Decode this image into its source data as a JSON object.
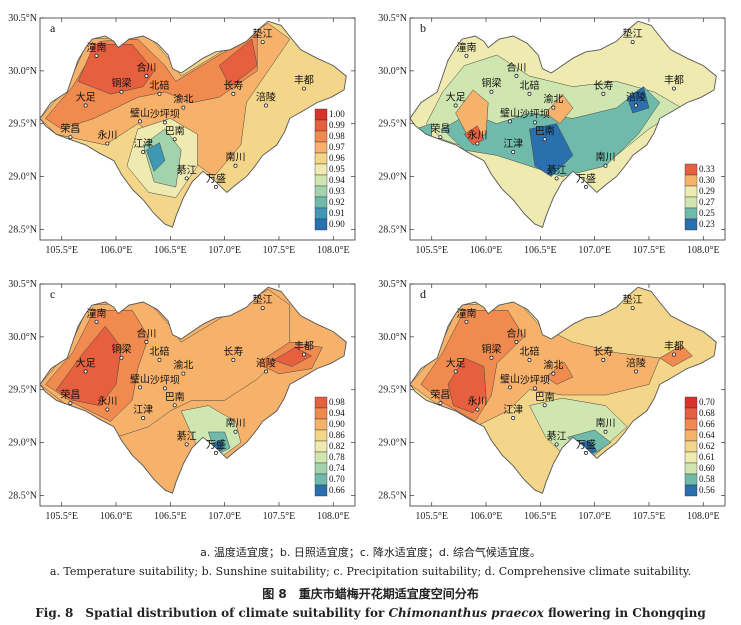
{
  "panels": [
    {
      "letter": "a",
      "legend": [
        "1.00",
        "0.99",
        "0.98",
        "0.97",
        "0.96",
        "0.95",
        "0.94",
        "0.93",
        "0.92",
        "0.91",
        "0.90"
      ],
      "legend_colors": [
        "#d7332a",
        "#e6603f",
        "#f08a4f",
        "#f6b26b",
        "#f4d68a",
        "#eeeab0",
        "#cfe6b0",
        "#a2d3ad",
        "#6fbaaa",
        "#3f98b3",
        "#2a6fae"
      ],
      "map_fill": "#f4d68a"
    },
    {
      "letter": "b",
      "legend": [
        "0.33",
        "0.30",
        "0.29",
        "0.27",
        "0.25",
        "0.23"
      ],
      "legend_colors": [
        "#e6603f",
        "#f6b26b",
        "#eeeab0",
        "#cfe6b0",
        "#6fbaaa",
        "#2a6fae"
      ],
      "map_fill": "#eeeab0"
    },
    {
      "letter": "c",
      "legend": [
        "0.98",
        "0.94",
        "0.90",
        "0.86",
        "0.82",
        "0.78",
        "0.74",
        "0.70",
        "0.66"
      ],
      "legend_colors": [
        "#e6603f",
        "#f08a4f",
        "#f6b26b",
        "#f4d68a",
        "#eeeab0",
        "#cfe6b0",
        "#a2d3ad",
        "#6fbaaa",
        "#2a6fae"
      ],
      "map_fill": "#f6b26b"
    },
    {
      "letter": "d",
      "legend": [
        "0.70",
        "0.68",
        "0.66",
        "0.64",
        "0.62",
        "0.61",
        "0.60",
        "0.58",
        "0.56"
      ],
      "legend_colors": [
        "#d7332a",
        "#e6603f",
        "#f08a4f",
        "#f6b26b",
        "#f4d68a",
        "#eeeab0",
        "#cfe6b0",
        "#6fbaaa",
        "#2a6fae"
      ],
      "map_fill": "#f4d68a"
    }
  ],
  "x_ticks": [
    "105.5°E",
    "106.0°E",
    "106.5°E",
    "107.0°E",
    "107.5°E",
    "108.0°E"
  ],
  "y_ticks": [
    "30.5°N",
    "30.0°N",
    "29.5°N",
    "29.0°N",
    "28.5°N"
  ],
  "cities": [
    "垫江",
    "潼南",
    "合川",
    "铜梁",
    "北碚",
    "大足",
    "长寿",
    "丰都",
    "渝北",
    "涪陵",
    "璧山",
    "沙坪坝",
    "荣昌",
    "永川",
    "巴南",
    "江津",
    "南川",
    "綦江",
    "万盛"
  ],
  "caption": {
    "items_zh": "a. 温度适宜度；b. 日照适宜度；c. 降水适宜度；d. 综合气候适宜度。",
    "items_en": "a. Temperature suitability; b. Sunshine suitability; c. Precipitation suitability; d. Comprehensive climate suitability.",
    "title_zh": "图 8　重庆市蜡梅开花期适宜度空间分布",
    "title_en_prefix": "Fig. 8　Spatial distribution of climate suitability for ",
    "title_en_italic": "Chimonanthus praecox",
    "title_en_suffix": " flowering in Chongqing"
  }
}
